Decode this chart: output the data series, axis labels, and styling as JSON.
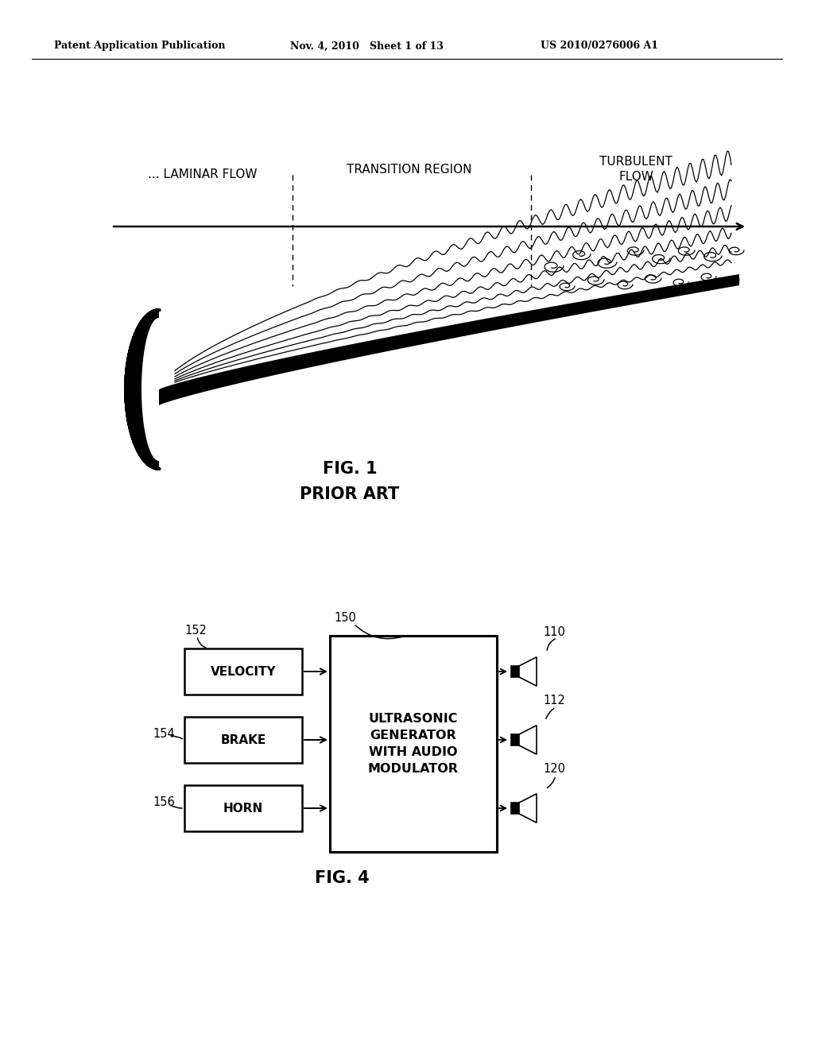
{
  "bg_color": "#ffffff",
  "header_left": "Patent Application Publication",
  "header_mid": "Nov. 4, 2010   Sheet 1 of 13",
  "header_right": "US 2010/0276006 A1",
  "fig1_label": "FIG. 1",
  "fig1_sublabel": "PRIOR ART",
  "fig4_label": "FIG. 4",
  "laminar_text": "... LAMINAR FLOW",
  "transition_text": "TRANSITION REGION",
  "turbulent_text": "TURBULENT\nFLOW",
  "box_velocity": "VELOCITY",
  "box_brake": "BRAKE",
  "box_horn": "HORN",
  "box_main": "ULTRASONIC\nGENERATOR\nWITH AUDIO\nMODULATOR",
  "label_152": "152",
  "label_154": "154",
  "label_156": "156",
  "label_150": "150",
  "label_110": "110",
  "label_112": "112",
  "label_120": "120"
}
